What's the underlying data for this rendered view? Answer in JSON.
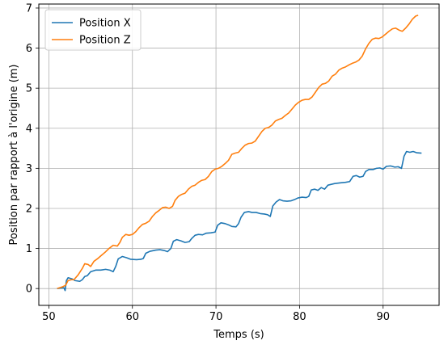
{
  "chart_data": {
    "type": "line",
    "xlabel": "Temps (s)",
    "ylabel": "Position par rapport à l'origine (m)",
    "xlim": [
      48.8,
      96.7
    ],
    "ylim": [
      -0.42,
      7.1
    ],
    "xticks": [
      "50",
      "60",
      "70",
      "80",
      "90"
    ],
    "yticks": [
      "0",
      "1",
      "2",
      "3",
      "4",
      "5",
      "6",
      "7"
    ],
    "grid": true,
    "legend_position": "top-left",
    "series": [
      {
        "name": "Position X",
        "color": "#1f77b4",
        "points": [
          [
            51.0,
            0.0
          ],
          [
            51.8,
            0.02
          ],
          [
            51.95,
            -0.05
          ],
          [
            52.1,
            0.2
          ],
          [
            52.3,
            0.27
          ],
          [
            52.8,
            0.24
          ],
          [
            53.1,
            0.2
          ],
          [
            53.7,
            0.18
          ],
          [
            54.0,
            0.22
          ],
          [
            54.3,
            0.3
          ],
          [
            54.6,
            0.32
          ],
          [
            55.0,
            0.42
          ],
          [
            55.6,
            0.46
          ],
          [
            56.2,
            0.46
          ],
          [
            56.8,
            0.48
          ],
          [
            57.3,
            0.46
          ],
          [
            57.7,
            0.42
          ],
          [
            58.0,
            0.55
          ],
          [
            58.3,
            0.74
          ],
          [
            58.8,
            0.8
          ],
          [
            59.3,
            0.77
          ],
          [
            59.8,
            0.73
          ],
          [
            60.5,
            0.72
          ],
          [
            61.0,
            0.73
          ],
          [
            61.3,
            0.75
          ],
          [
            61.6,
            0.88
          ],
          [
            62.1,
            0.93
          ],
          [
            62.8,
            0.96
          ],
          [
            63.3,
            0.97
          ],
          [
            63.8,
            0.95
          ],
          [
            64.2,
            0.92
          ],
          [
            64.6,
            1.0
          ],
          [
            64.9,
            1.18
          ],
          [
            65.3,
            1.22
          ],
          [
            65.8,
            1.19
          ],
          [
            66.3,
            1.15
          ],
          [
            66.8,
            1.17
          ],
          [
            67.1,
            1.25
          ],
          [
            67.5,
            1.33
          ],
          [
            67.9,
            1.35
          ],
          [
            68.4,
            1.34
          ],
          [
            68.8,
            1.38
          ],
          [
            69.4,
            1.39
          ],
          [
            69.9,
            1.41
          ],
          [
            70.2,
            1.58
          ],
          [
            70.6,
            1.64
          ],
          [
            71.1,
            1.62
          ],
          [
            71.6,
            1.58
          ],
          [
            71.9,
            1.55
          ],
          [
            72.4,
            1.54
          ],
          [
            72.7,
            1.62
          ],
          [
            73.0,
            1.78
          ],
          [
            73.4,
            1.9
          ],
          [
            73.9,
            1.92
          ],
          [
            74.3,
            1.9
          ],
          [
            74.8,
            1.9
          ],
          [
            75.3,
            1.87
          ],
          [
            75.8,
            1.86
          ],
          [
            76.2,
            1.84
          ],
          [
            76.5,
            1.8
          ],
          [
            76.8,
            2.06
          ],
          [
            77.2,
            2.16
          ],
          [
            77.6,
            2.22
          ],
          [
            78.0,
            2.19
          ],
          [
            78.5,
            2.18
          ],
          [
            79.0,
            2.19
          ],
          [
            79.4,
            2.22
          ],
          [
            79.8,
            2.26
          ],
          [
            80.3,
            2.28
          ],
          [
            80.8,
            2.27
          ],
          [
            81.1,
            2.3
          ],
          [
            81.4,
            2.46
          ],
          [
            81.8,
            2.48
          ],
          [
            82.2,
            2.45
          ],
          [
            82.6,
            2.52
          ],
          [
            83.0,
            2.48
          ],
          [
            83.4,
            2.58
          ],
          [
            83.8,
            2.6
          ],
          [
            84.2,
            2.62
          ],
          [
            84.6,
            2.63
          ],
          [
            85.0,
            2.64
          ],
          [
            85.5,
            2.65
          ],
          [
            86.0,
            2.67
          ],
          [
            86.4,
            2.8
          ],
          [
            86.8,
            2.82
          ],
          [
            87.2,
            2.78
          ],
          [
            87.6,
            2.8
          ],
          [
            87.9,
            2.92
          ],
          [
            88.3,
            2.97
          ],
          [
            88.8,
            2.97
          ],
          [
            89.2,
            3.0
          ],
          [
            89.6,
            3.01
          ],
          [
            90.0,
            2.98
          ],
          [
            90.4,
            3.05
          ],
          [
            90.9,
            3.06
          ],
          [
            91.4,
            3.03
          ],
          [
            91.8,
            3.04
          ],
          [
            92.2,
            3.0
          ],
          [
            92.5,
            3.3
          ],
          [
            92.8,
            3.42
          ],
          [
            93.2,
            3.4
          ],
          [
            93.6,
            3.42
          ],
          [
            94.0,
            3.39
          ],
          [
            94.6,
            3.38
          ]
        ]
      },
      {
        "name": "Position Z",
        "color": "#ff7f0e",
        "points": [
          [
            51.0,
            0.0
          ],
          [
            51.6,
            0.04
          ],
          [
            52.0,
            0.08
          ],
          [
            52.3,
            0.2
          ],
          [
            52.7,
            0.22
          ],
          [
            53.0,
            0.22
          ],
          [
            53.5,
            0.34
          ],
          [
            54.0,
            0.5
          ],
          [
            54.3,
            0.62
          ],
          [
            54.7,
            0.6
          ],
          [
            55.0,
            0.55
          ],
          [
            55.4,
            0.68
          ],
          [
            55.8,
            0.74
          ],
          [
            56.3,
            0.83
          ],
          [
            56.7,
            0.9
          ],
          [
            57.2,
            1.0
          ],
          [
            57.7,
            1.08
          ],
          [
            58.2,
            1.06
          ],
          [
            58.5,
            1.15
          ],
          [
            58.8,
            1.28
          ],
          [
            59.2,
            1.35
          ],
          [
            59.6,
            1.33
          ],
          [
            60.0,
            1.35
          ],
          [
            60.4,
            1.42
          ],
          [
            60.8,
            1.52
          ],
          [
            61.2,
            1.6
          ],
          [
            61.6,
            1.63
          ],
          [
            62.0,
            1.68
          ],
          [
            62.4,
            1.8
          ],
          [
            62.8,
            1.89
          ],
          [
            63.2,
            1.95
          ],
          [
            63.6,
            2.02
          ],
          [
            64.0,
            2.03
          ],
          [
            64.4,
            2.0
          ],
          [
            64.8,
            2.05
          ],
          [
            65.1,
            2.2
          ],
          [
            65.5,
            2.3
          ],
          [
            65.9,
            2.35
          ],
          [
            66.3,
            2.38
          ],
          [
            66.7,
            2.48
          ],
          [
            67.1,
            2.55
          ],
          [
            67.5,
            2.58
          ],
          [
            67.9,
            2.65
          ],
          [
            68.3,
            2.7
          ],
          [
            68.7,
            2.72
          ],
          [
            69.1,
            2.8
          ],
          [
            69.5,
            2.92
          ],
          [
            69.9,
            2.98
          ],
          [
            70.3,
            3.0
          ],
          [
            70.7,
            3.05
          ],
          [
            71.1,
            3.12
          ],
          [
            71.5,
            3.2
          ],
          [
            71.9,
            3.35
          ],
          [
            72.3,
            3.38
          ],
          [
            72.7,
            3.4
          ],
          [
            73.1,
            3.5
          ],
          [
            73.5,
            3.58
          ],
          [
            73.9,
            3.62
          ],
          [
            74.3,
            3.63
          ],
          [
            74.7,
            3.68
          ],
          [
            75.1,
            3.8
          ],
          [
            75.5,
            3.92
          ],
          [
            75.9,
            4.0
          ],
          [
            76.3,
            4.02
          ],
          [
            76.7,
            4.08
          ],
          [
            77.1,
            4.18
          ],
          [
            77.5,
            4.22
          ],
          [
            77.9,
            4.25
          ],
          [
            78.3,
            4.32
          ],
          [
            78.7,
            4.38
          ],
          [
            79.1,
            4.48
          ],
          [
            79.5,
            4.58
          ],
          [
            79.9,
            4.65
          ],
          [
            80.3,
            4.7
          ],
          [
            80.7,
            4.72
          ],
          [
            81.1,
            4.72
          ],
          [
            81.5,
            4.78
          ],
          [
            81.9,
            4.9
          ],
          [
            82.3,
            5.02
          ],
          [
            82.7,
            5.1
          ],
          [
            83.1,
            5.12
          ],
          [
            83.5,
            5.18
          ],
          [
            83.9,
            5.3
          ],
          [
            84.3,
            5.35
          ],
          [
            84.7,
            5.45
          ],
          [
            85.1,
            5.5
          ],
          [
            85.5,
            5.53
          ],
          [
            85.9,
            5.58
          ],
          [
            86.3,
            5.62
          ],
          [
            86.7,
            5.65
          ],
          [
            87.1,
            5.7
          ],
          [
            87.5,
            5.8
          ],
          [
            87.9,
            5.98
          ],
          [
            88.3,
            6.12
          ],
          [
            88.7,
            6.22
          ],
          [
            89.1,
            6.25
          ],
          [
            89.5,
            6.24
          ],
          [
            89.9,
            6.28
          ],
          [
            90.3,
            6.35
          ],
          [
            90.7,
            6.42
          ],
          [
            91.1,
            6.48
          ],
          [
            91.5,
            6.5
          ],
          [
            91.9,
            6.45
          ],
          [
            92.3,
            6.42
          ],
          [
            92.7,
            6.5
          ],
          [
            93.1,
            6.6
          ],
          [
            93.5,
            6.72
          ],
          [
            93.9,
            6.8
          ],
          [
            94.2,
            6.82
          ]
        ]
      }
    ]
  }
}
